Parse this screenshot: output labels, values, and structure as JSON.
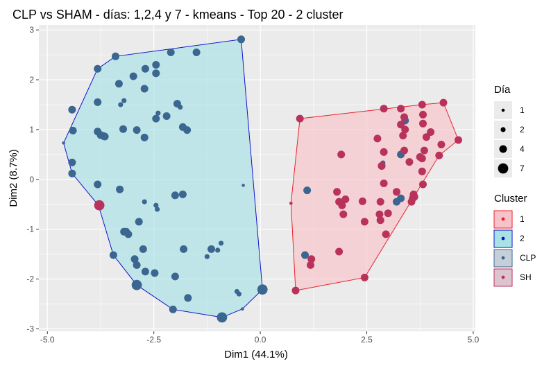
{
  "chart_data": {
    "type": "scatter",
    "title": "CLP vs SHAM - días: 1,2,4 y 7 - kmeans - Top 20 - 2 cluster",
    "xlabel": "Dim1 (44.1%)",
    "ylabel": "Dim2 (8.7%)",
    "xlim": [
      -5.2,
      5.05
    ],
    "ylim": [
      -3.05,
      3.1
    ],
    "xticks": [
      -5.0,
      -2.5,
      0.0,
      2.5,
      5.0
    ],
    "xtick_labels": [
      "-5.0",
      "-2.5",
      "0.0",
      "2.5",
      "5.0"
    ],
    "yticks": [
      -3,
      -2,
      -1,
      0,
      1,
      2,
      3
    ],
    "ytick_labels": [
      "-3",
      "-2",
      "-1",
      "0",
      "1",
      "2",
      "3"
    ],
    "grid": true,
    "legend_placement": "right",
    "colors": {
      "panel": "#ebebeb",
      "grid": "#ffffff",
      "clp_point": "#3a6690",
      "sh_point": "#b8325c",
      "cluster1_border": "#e8222d",
      "cluster1_fill": "#f7c3c8",
      "cluster2_border": "#1111cc",
      "cluster2_fill": "#a8e2e6"
    },
    "legend_dia": {
      "title": "Día",
      "items": [
        {
          "label": "1",
          "size": 1
        },
        {
          "label": "2",
          "size": 2
        },
        {
          "label": "4",
          "size": 4
        },
        {
          "label": "7",
          "size": 7
        }
      ]
    },
    "legend_cluster": {
      "title": "Cluster",
      "items": [
        {
          "label": "1",
          "type": "cluster",
          "key": "1"
        },
        {
          "label": "2",
          "type": "cluster",
          "key": "2"
        },
        {
          "label": "CLP",
          "type": "group",
          "key": "CLP"
        },
        {
          "label": "SH",
          "type": "group",
          "key": "SH"
        }
      ]
    },
    "hulls": [
      {
        "cluster": "2",
        "points": [
          [
            -4.62,
            0.73
          ],
          [
            -3.82,
            2.22
          ],
          [
            -3.4,
            2.47
          ],
          [
            -0.45,
            2.81
          ],
          [
            0.05,
            -2.21
          ],
          [
            -0.42,
            -2.6
          ],
          [
            -0.9,
            -2.77
          ],
          [
            -2.05,
            -2.61
          ],
          [
            -2.9,
            -2.12
          ],
          [
            -3.45,
            -1.52
          ],
          [
            -3.8,
            -0.52
          ],
          [
            -4.42,
            0.12
          ]
        ]
      },
      {
        "cluster": "1",
        "points": [
          [
            0.72,
            -0.48
          ],
          [
            0.93,
            1.22
          ],
          [
            3.79,
            1.5
          ],
          [
            4.3,
            1.54
          ],
          [
            4.65,
            0.79
          ],
          [
            4.2,
            0.48
          ],
          [
            2.45,
            -1.97
          ],
          [
            0.83,
            -2.23
          ]
        ]
      }
    ],
    "series": [
      {
        "name": "CLP",
        "points": [
          [
            -4.62,
            0.73,
            1
          ],
          [
            -4.42,
            0.12,
            4
          ],
          [
            -4.42,
            0.34,
            4
          ],
          [
            -4.4,
            0.98,
            4
          ],
          [
            -4.42,
            1.4,
            4
          ],
          [
            -3.82,
            2.22,
            4
          ],
          [
            -3.82,
            1.55,
            4
          ],
          [
            -3.82,
            0.96,
            4
          ],
          [
            -3.82,
            -0.1,
            4
          ],
          [
            -3.75,
            0.89,
            4
          ],
          [
            -3.68,
            0.87,
            4
          ],
          [
            -3.65,
            0.86,
            4
          ],
          [
            -3.4,
            2.47,
            4
          ],
          [
            -3.32,
            1.92,
            4
          ],
          [
            -3.28,
            1.5,
            2
          ],
          [
            -3.22,
            1.01,
            4
          ],
          [
            -3.2,
            1.58,
            2
          ],
          [
            -2.98,
            2.07,
            4
          ],
          [
            -2.9,
            0.99,
            4
          ],
          [
            -2.72,
            1.82,
            4
          ],
          [
            -2.7,
            2.22,
            4
          ],
          [
            -2.45,
            2.3,
            4
          ],
          [
            -2.45,
            2.13,
            4
          ],
          [
            -2.45,
            1.22,
            4
          ],
          [
            -2.2,
            1.27,
            4
          ],
          [
            -1.95,
            1.52,
            4
          ],
          [
            -1.82,
            1.05,
            4
          ],
          [
            -1.72,
            0.99,
            4
          ],
          [
            -1.82,
            -0.3,
            4
          ],
          [
            -1.88,
            1.45,
            2
          ],
          [
            -2.0,
            -0.32,
            4
          ],
          [
            -2.72,
            0.84,
            4
          ],
          [
            -2.72,
            -0.45,
            2
          ],
          [
            -2.4,
            1.33,
            2
          ],
          [
            -2.1,
            2.55,
            4
          ],
          [
            -1.5,
            2.55,
            4
          ],
          [
            -0.45,
            2.81,
            4
          ],
          [
            -3.45,
            -1.52,
            4
          ],
          [
            -3.3,
            -0.2,
            4
          ],
          [
            -3.2,
            -1.05,
            4
          ],
          [
            -3.15,
            -1.05,
            4
          ],
          [
            -3.1,
            -1.1,
            4
          ],
          [
            -2.95,
            -1.6,
            4
          ],
          [
            -2.9,
            -1.72,
            4
          ],
          [
            -2.85,
            -0.85,
            4
          ],
          [
            -2.75,
            -1.4,
            4
          ],
          [
            -2.7,
            -1.85,
            4
          ],
          [
            -2.9,
            -2.12,
            7
          ],
          [
            -2.48,
            -1.88,
            4
          ],
          [
            -2.45,
            -0.52,
            2
          ],
          [
            -2.42,
            -0.6,
            2
          ],
          [
            -2.05,
            -2.61,
            4
          ],
          [
            -2.0,
            -1.95,
            4
          ],
          [
            -1.8,
            -1.4,
            4
          ],
          [
            -1.7,
            -2.38,
            4
          ],
          [
            -1.25,
            -1.55,
            2
          ],
          [
            -1.15,
            -1.4,
            4
          ],
          [
            -1.0,
            -1.42,
            2
          ],
          [
            -0.92,
            -1.28,
            2
          ],
          [
            -0.9,
            -2.77,
            7
          ],
          [
            -0.55,
            -2.25,
            2
          ],
          [
            -0.5,
            -2.3,
            2
          ],
          [
            -0.42,
            -2.6,
            1
          ],
          [
            -0.4,
            -0.12,
            1
          ],
          [
            0.05,
            -2.21,
            7
          ],
          [
            1.05,
            -1.52,
            4
          ],
          [
            1.1,
            -0.22,
            4
          ],
          [
            2.85,
            0.27,
            4
          ],
          [
            2.88,
            0.33,
            2
          ],
          [
            3.2,
            -0.45,
            4
          ],
          [
            3.3,
            0.5,
            4
          ],
          [
            3.3,
            -0.38,
            4
          ],
          [
            3.4,
            1.18,
            4
          ]
        ]
      },
      {
        "name": "SH",
        "points": [
          [
            -3.78,
            -0.52,
            7
          ],
          [
            0.72,
            -0.48,
            1
          ],
          [
            0.93,
            1.22,
            4
          ],
          [
            0.83,
            -2.23,
            4
          ],
          [
            1.18,
            -1.72,
            4
          ],
          [
            1.2,
            -1.6,
            4
          ],
          [
            1.8,
            -0.25,
            4
          ],
          [
            1.85,
            -0.45,
            4
          ],
          [
            1.85,
            -1.45,
            4
          ],
          [
            1.9,
            0.5,
            4
          ],
          [
            1.92,
            -0.52,
            4
          ],
          [
            1.95,
            -0.7,
            4
          ],
          [
            2.0,
            -0.4,
            4
          ],
          [
            2.4,
            -0.44,
            4
          ],
          [
            2.45,
            -0.85,
            4
          ],
          [
            2.45,
            -1.97,
            4
          ],
          [
            2.75,
            0.82,
            4
          ],
          [
            2.8,
            -0.7,
            4
          ],
          [
            2.82,
            -0.45,
            4
          ],
          [
            2.82,
            -0.82,
            4
          ],
          [
            2.85,
            0.27,
            4
          ],
          [
            2.9,
            0.55,
            4
          ],
          [
            2.9,
            1.42,
            4
          ],
          [
            2.9,
            -0.08,
            4
          ],
          [
            2.95,
            -1.1,
            4
          ],
          [
            3.0,
            -0.68,
            4
          ],
          [
            3.2,
            -0.25,
            4
          ],
          [
            3.3,
            1.42,
            4
          ],
          [
            3.3,
            1.1,
            4
          ],
          [
            3.35,
            0.88,
            4
          ],
          [
            3.38,
            1.25,
            4
          ],
          [
            3.38,
            0.58,
            4
          ],
          [
            3.4,
            1.0,
            4
          ],
          [
            3.5,
            0.35,
            4
          ],
          [
            3.55,
            -0.45,
            4
          ],
          [
            3.58,
            -0.38,
            4
          ],
          [
            3.6,
            -0.3,
            4
          ],
          [
            3.62,
            -0.35,
            4
          ],
          [
            3.75,
            0.45,
            4
          ],
          [
            3.8,
            0.42,
            4
          ],
          [
            3.8,
            0.16,
            4
          ],
          [
            3.82,
            -0.1,
            4
          ],
          [
            3.85,
            0.58,
            4
          ],
          [
            3.8,
            1.5,
            4
          ],
          [
            3.82,
            1.12,
            4
          ],
          [
            3.82,
            1.3,
            4
          ],
          [
            3.9,
            0.85,
            4
          ],
          [
            4.0,
            0.95,
            4
          ],
          [
            4.2,
            0.48,
            4
          ],
          [
            4.25,
            0.7,
            4
          ],
          [
            4.3,
            1.54,
            4
          ],
          [
            4.65,
            0.79,
            4
          ]
        ]
      }
    ]
  }
}
